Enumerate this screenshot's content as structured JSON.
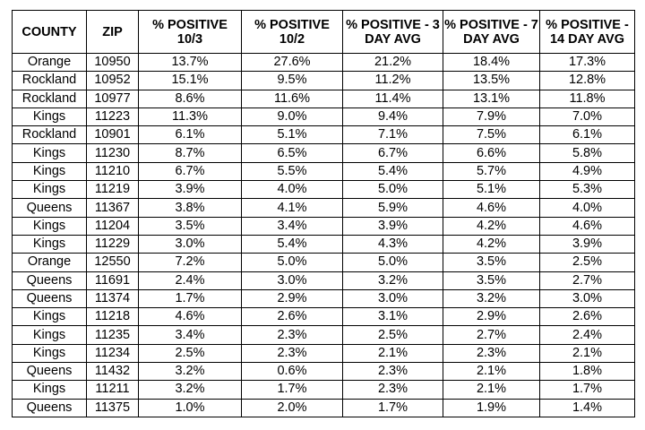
{
  "table": {
    "headers": [
      "COUNTY",
      "ZIP",
      "% POSITIVE 10/3",
      "% POSITIVE 10/2",
      "% POSITIVE - 3 DAY AVG",
      "% POSITIVE - 7 DAY AVG",
      "% POSITIVE - 14 DAY AVG"
    ],
    "rows": [
      [
        "Orange",
        "10950",
        "13.7%",
        "27.6%",
        "21.2%",
        "18.4%",
        "17.3%"
      ],
      [
        "Rockland",
        "10952",
        "15.1%",
        "9.5%",
        "11.2%",
        "13.5%",
        "12.8%"
      ],
      [
        "Rockland",
        "10977",
        "8.6%",
        "11.6%",
        "11.4%",
        "13.1%",
        "11.8%"
      ],
      [
        "Kings",
        "11223",
        "11.3%",
        "9.0%",
        "9.4%",
        "7.9%",
        "7.0%"
      ],
      [
        "Rockland",
        "10901",
        "6.1%",
        "5.1%",
        "7.1%",
        "7.5%",
        "6.1%"
      ],
      [
        "Kings",
        "11230",
        "8.7%",
        "6.5%",
        "6.7%",
        "6.6%",
        "5.8%"
      ],
      [
        "Kings",
        "11210",
        "6.7%",
        "5.5%",
        "5.4%",
        "5.7%",
        "4.9%"
      ],
      [
        "Kings",
        "11219",
        "3.9%",
        "4.0%",
        "5.0%",
        "5.1%",
        "5.3%"
      ],
      [
        "Queens",
        "11367",
        "3.8%",
        "4.1%",
        "5.9%",
        "4.6%",
        "4.0%"
      ],
      [
        "Kings",
        "11204",
        "3.5%",
        "3.4%",
        "3.9%",
        "4.2%",
        "4.6%"
      ],
      [
        "Kings",
        "11229",
        "3.0%",
        "5.4%",
        "4.3%",
        "4.2%",
        "3.9%"
      ],
      [
        "Orange",
        "12550",
        "7.2%",
        "5.0%",
        "5.0%",
        "3.5%",
        "2.5%"
      ],
      [
        "Queens",
        "11691",
        "2.4%",
        "3.0%",
        "3.2%",
        "3.5%",
        "2.7%"
      ],
      [
        "Queens",
        "11374",
        "1.7%",
        "2.9%",
        "3.0%",
        "3.2%",
        "3.0%"
      ],
      [
        "Kings",
        "11218",
        "4.6%",
        "2.6%",
        "3.1%",
        "2.9%",
        "2.6%"
      ],
      [
        "Kings",
        "11235",
        "3.4%",
        "2.3%",
        "2.5%",
        "2.7%",
        "2.4%"
      ],
      [
        "Kings",
        "11234",
        "2.5%",
        "2.3%",
        "2.1%",
        "2.3%",
        "2.1%"
      ],
      [
        "Queens",
        "11432",
        "3.2%",
        "0.6%",
        "2.3%",
        "2.1%",
        "1.8%"
      ],
      [
        "Kings",
        "11211",
        "3.2%",
        "1.7%",
        "2.3%",
        "2.1%",
        "1.7%"
      ],
      [
        "Queens",
        "11375",
        "1.0%",
        "2.0%",
        "1.7%",
        "1.9%",
        "1.4%"
      ]
    ]
  }
}
